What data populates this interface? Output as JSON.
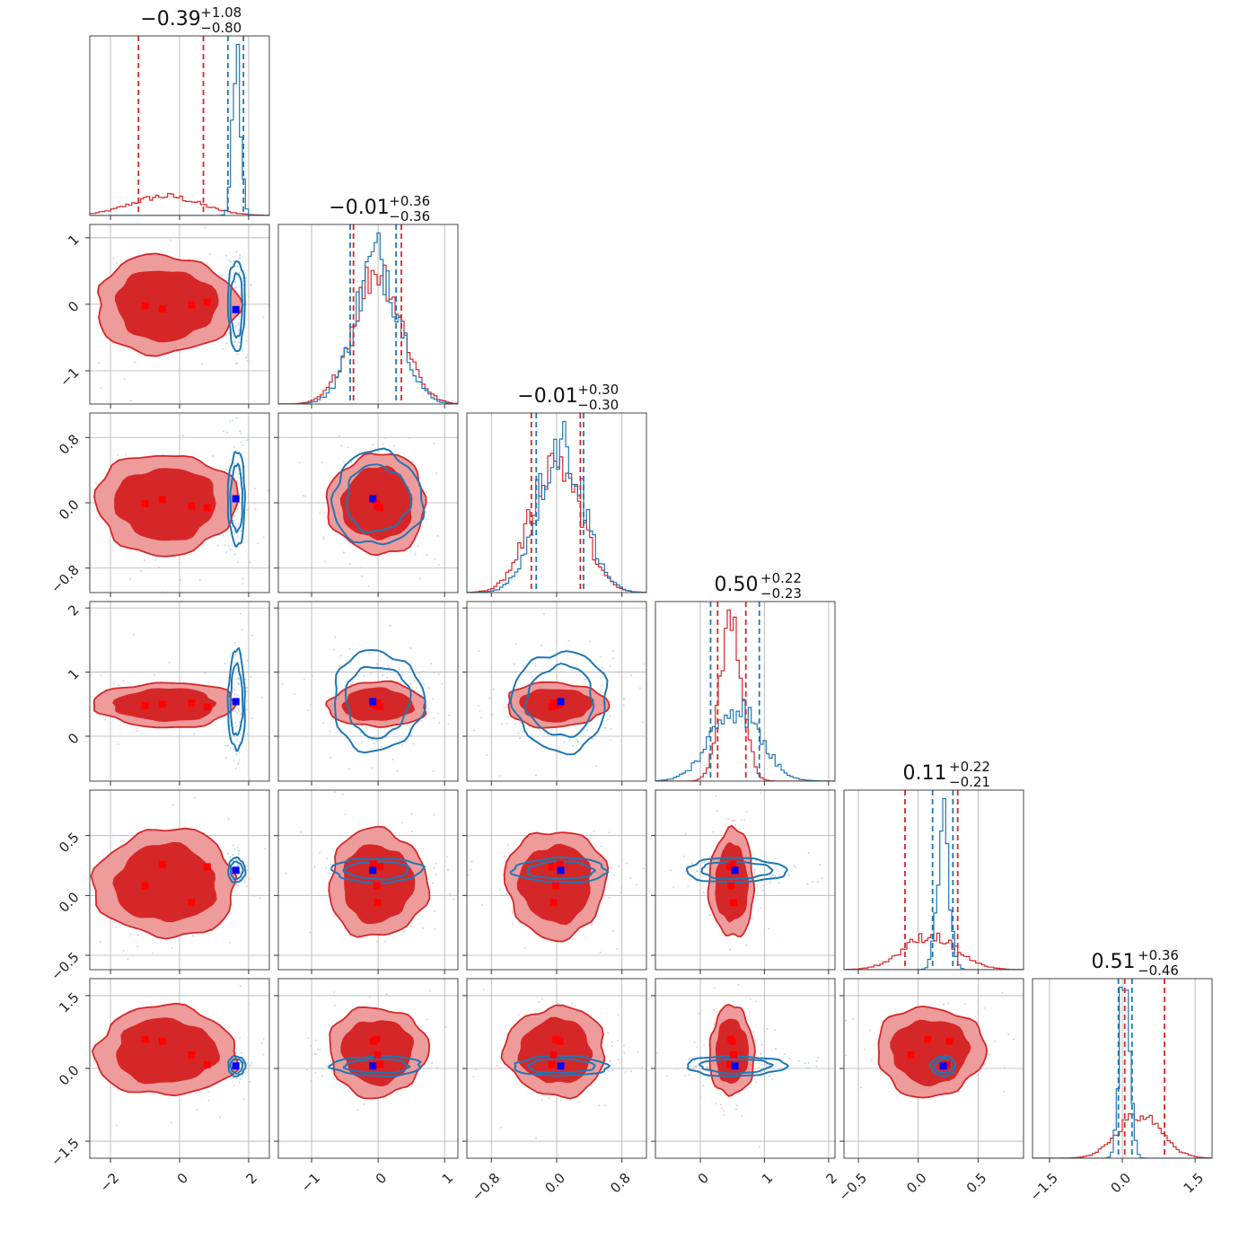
{
  "colors": {
    "model_a": "#d62728",
    "model_a_light": "#ee9b9c",
    "model_b": "#1f77b4",
    "marker_a": "#ff0000",
    "marker_b": "#0000ff",
    "grid": "#b0b0b0"
  },
  "chart_data": {
    "type": "corner",
    "n_params": 6,
    "grid": true,
    "ranges": [
      [
        -2.6,
        2.6
      ],
      [
        -1.5,
        1.2
      ],
      [
        -1.1,
        1.1
      ],
      [
        -0.7,
        2.1
      ],
      [
        -0.62,
        0.88
      ],
      [
        -1.85,
        1.85
      ]
    ],
    "tick_values": [
      [
        -2,
        0,
        2
      ],
      [
        -1,
        0,
        1
      ],
      [
        -0.8,
        0.0,
        0.8
      ],
      [
        0,
        1,
        2
      ],
      [
        -0.5,
        0.0,
        0.5
      ],
      [
        -1.5,
        0.0,
        1.5
      ]
    ],
    "tick_labels": [
      [
        "−2",
        "0",
        "2"
      ],
      [
        "−1",
        "0",
        "1"
      ],
      [
        "−0.8",
        "0.0",
        "0.8"
      ],
      [
        "0",
        "1",
        "2"
      ],
      [
        "−0.5",
        "0.0",
        "0.5"
      ],
      [
        "−1.5",
        "0.0",
        "1.5"
      ]
    ],
    "titles": [
      {
        "value": "−0.39",
        "plus": "+1.08",
        "minus": "−0.80"
      },
      {
        "value": "−0.01",
        "plus": "+0.36",
        "minus": "−0.36"
      },
      {
        "value": "−0.01",
        "plus": "+0.30",
        "minus": "−0.30"
      },
      {
        "value": "0.50",
        "plus": "+0.22",
        "minus": "−0.23"
      },
      {
        "value": "0.11",
        "plus": "+0.22",
        "minus": "−0.21"
      },
      {
        "value": "0.51",
        "plus": "+0.36",
        "minus": "−0.46"
      }
    ],
    "model_a": {
      "color": "#d62728",
      "mean": [
        -0.4,
        -0.01,
        -0.01,
        0.49,
        0.1,
        0.35
      ],
      "sd": [
        1.0,
        0.36,
        0.3,
        0.17,
        0.22,
        0.45
      ],
      "quantile_lines": [
        [
          -1.19,
          0.69
        ],
        [
          -0.37,
          0.35
        ],
        [
          -0.31,
          0.29
        ],
        [
          0.27,
          0.71
        ],
        [
          -0.11,
          0.33
        ],
        [
          0.05,
          0.87
        ]
      ],
      "markers": [
        [
          -1.0,
          -0.02,
          -0.01,
          0.48,
          0.08,
          0.6
        ],
        [
          -0.5,
          -0.07,
          0.04,
          0.5,
          0.26,
          0.56
        ],
        [
          0.35,
          -0.01,
          -0.04,
          0.52,
          -0.06,
          0.28
        ],
        [
          0.8,
          0.03,
          -0.06,
          0.46,
          0.24,
          0.08
        ]
      ]
    },
    "model_b": {
      "color": "#1f77b4",
      "mean": [
        1.65,
        -0.01,
        0.05,
        0.55,
        0.21,
        0.05
      ],
      "sd": [
        0.12,
        0.33,
        0.28,
        0.38,
        0.05,
        0.1
      ],
      "quantile_lines": [
        [
          1.4,
          1.85
        ],
        [
          -0.42,
          0.27
        ],
        [
          -0.25,
          0.33
        ],
        [
          0.16,
          0.92
        ],
        [
          0.12,
          0.29
        ],
        [
          -0.08,
          0.2
        ]
      ],
      "marker": [
        1.63,
        -0.08,
        0.05,
        0.54,
        0.21,
        0.05
      ]
    }
  }
}
